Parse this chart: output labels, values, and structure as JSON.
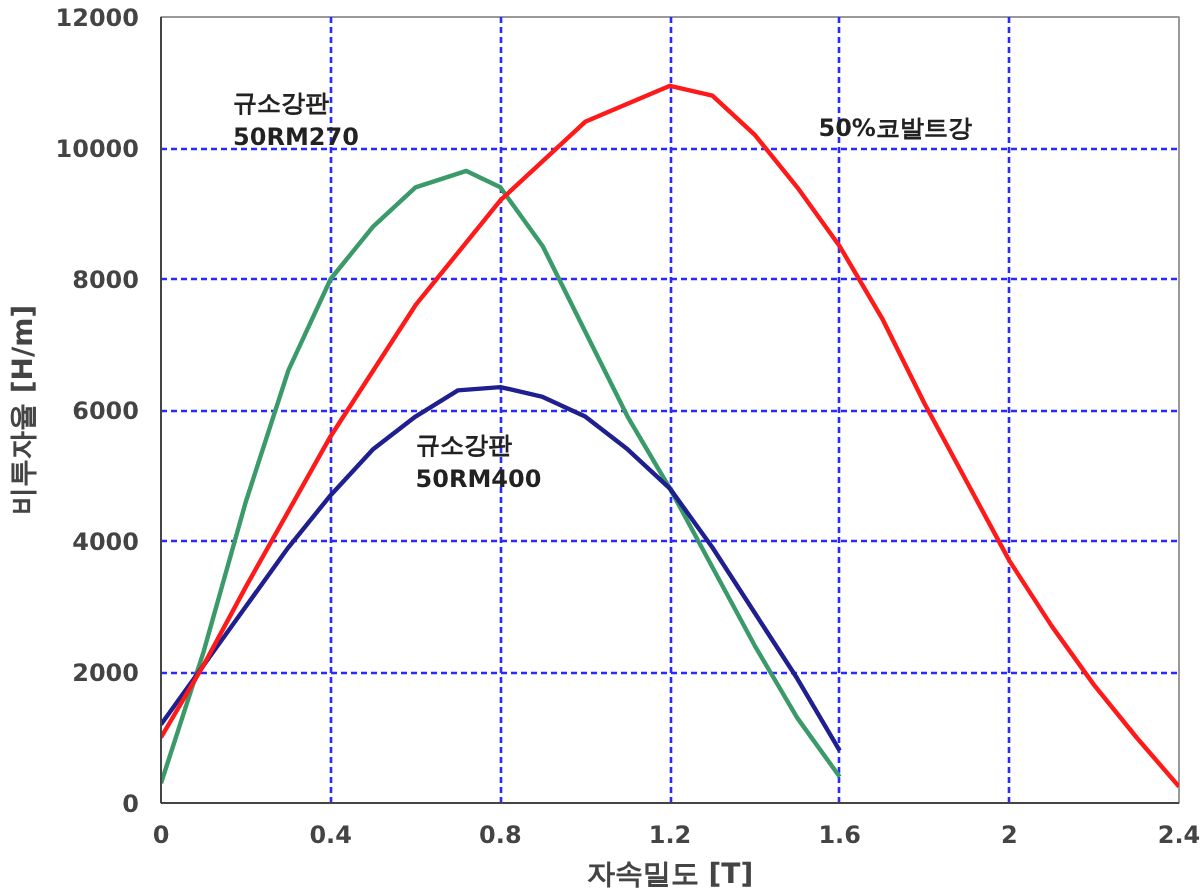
{
  "chart_data": {
    "type": "line",
    "xlabel": "자속밀도 [T]",
    "ylabel": "비투자율 [H/m]",
    "xlim": [
      0,
      2.4
    ],
    "xticks": [
      0,
      0.4,
      0.8,
      1.2,
      1.6,
      2,
      2.4
    ],
    "ylim": [
      0,
      12000
    ],
    "yticks": [
      0,
      2000,
      4000,
      6000,
      8000,
      10000,
      12000
    ],
    "grid": true,
    "line_style": "solid",
    "marker": "none",
    "series": [
      {
        "name": "규소강판\n50RM270",
        "color": "#3a9a6a",
        "x": [
          0,
          0.1,
          0.2,
          0.3,
          0.4,
          0.5,
          0.6,
          0.72,
          0.8,
          0.9,
          1.0,
          1.1,
          1.2,
          1.3,
          1.4,
          1.5,
          1.6
        ],
        "values": [
          300,
          2300,
          4600,
          6600,
          8000,
          8800,
          9400,
          9650,
          9400,
          8500,
          7200,
          5900,
          4800,
          3600,
          2400,
          1300,
          400
        ]
      },
      {
        "name": "규소강판\n50RM400",
        "color": "#1f1f8f",
        "x": [
          0,
          0.1,
          0.2,
          0.3,
          0.4,
          0.5,
          0.6,
          0.7,
          0.8,
          0.9,
          1.0,
          1.1,
          1.2,
          1.3,
          1.4,
          1.5,
          1.6
        ],
        "values": [
          1200,
          2100,
          3000,
          3900,
          4700,
          5400,
          5900,
          6300,
          6350,
          6200,
          5900,
          5400,
          4800,
          3900,
          2900,
          1900,
          800
        ]
      },
      {
        "name": "50%코발트강",
        "color": "#ff1a1a",
        "x": [
          0,
          0.1,
          0.2,
          0.4,
          0.6,
          0.8,
          1.0,
          1.2,
          1.3,
          1.4,
          1.5,
          1.6,
          1.7,
          1.8,
          1.9,
          2.0,
          2.1,
          2.2,
          2.3,
          2.4
        ],
        "values": [
          1000,
          2100,
          3300,
          5600,
          7600,
          9200,
          10400,
          10950,
          10800,
          10200,
          9400,
          8500,
          7400,
          6100,
          4900,
          3700,
          2700,
          1800,
          1000,
          250
        ]
      }
    ]
  }
}
